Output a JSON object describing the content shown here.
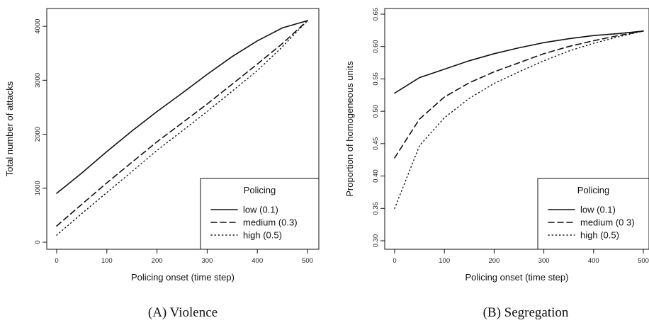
{
  "chart_data": [
    {
      "type": "line",
      "caption": "(A)  Violence",
      "xlabel": "Policing onset (time step)",
      "ylabel": "Total number of attacks",
      "xlim": [
        0,
        500
      ],
      "ylim": [
        0,
        4100
      ],
      "xticks": [
        0,
        100,
        200,
        300,
        400,
        500
      ],
      "yticks": [
        0,
        1000,
        2000,
        3000,
        4000
      ],
      "grid": false,
      "legend": {
        "title": "Policing",
        "placement": "bottom-right"
      },
      "x": [
        0,
        50,
        100,
        150,
        200,
        250,
        300,
        350,
        400,
        450,
        500
      ],
      "series": [
        {
          "name": "low (0.1)",
          "dash": "solid",
          "values": [
            905,
            1280,
            1680,
            2060,
            2420,
            2760,
            3110,
            3440,
            3730,
            3970,
            4105
          ]
        },
        {
          "name": "medium (0.3)",
          "dash": "dashed",
          "values": [
            300,
            700,
            1100,
            1480,
            1860,
            2210,
            2560,
            2930,
            3300,
            3680,
            4105
          ]
        },
        {
          "name": "high (0.5)",
          "dash": "dotted",
          "values": [
            130,
            530,
            920,
            1310,
            1700,
            2060,
            2420,
            2800,
            3180,
            3620,
            4105
          ]
        }
      ]
    },
    {
      "type": "line",
      "caption": "(B)  Segregation",
      "xlabel": "Policing onset (time step)",
      "ylabel": "Proportion of homogeneous units",
      "xlim": [
        0,
        500
      ],
      "ylim": [
        0.3,
        0.65
      ],
      "xticks": [
        0,
        100,
        200,
        300,
        400,
        500
      ],
      "xtick_labels": [
        "0",
        "100",
        "200",
        "300",
        "400",
        "500"
      ],
      "yticks": [
        0.3,
        0.35,
        0.4,
        0.45,
        0.5,
        0.55,
        0.6,
        0.65
      ],
      "ytick_labels": [
        "0.30",
        "0.35",
        "0.40",
        "0.45",
        "0.50",
        "0.55",
        "0.60",
        "0.65"
      ],
      "grid": false,
      "legend": {
        "title": "Policing",
        "placement": "bottom-right"
      },
      "x": [
        0,
        50,
        100,
        150,
        200,
        250,
        300,
        350,
        400,
        450,
        500
      ],
      "series": [
        {
          "name": "low (0.1)",
          "dash": "solid",
          "values": [
            0.528,
            0.552,
            0.565,
            0.578,
            0.589,
            0.598,
            0.606,
            0.612,
            0.617,
            0.62,
            0.624
          ]
        },
        {
          "name": "medium (0 3)",
          "dash": "dashed",
          "values": [
            0.428,
            0.488,
            0.522,
            0.544,
            0.561,
            0.575,
            0.589,
            0.6,
            0.609,
            0.617,
            0.624
          ]
        },
        {
          "name": "high (0.5)",
          "dash": "dotted",
          "values": [
            0.35,
            0.447,
            0.49,
            0.52,
            0.543,
            0.561,
            0.578,
            0.593,
            0.605,
            0.615,
            0.624
          ]
        }
      ]
    }
  ]
}
